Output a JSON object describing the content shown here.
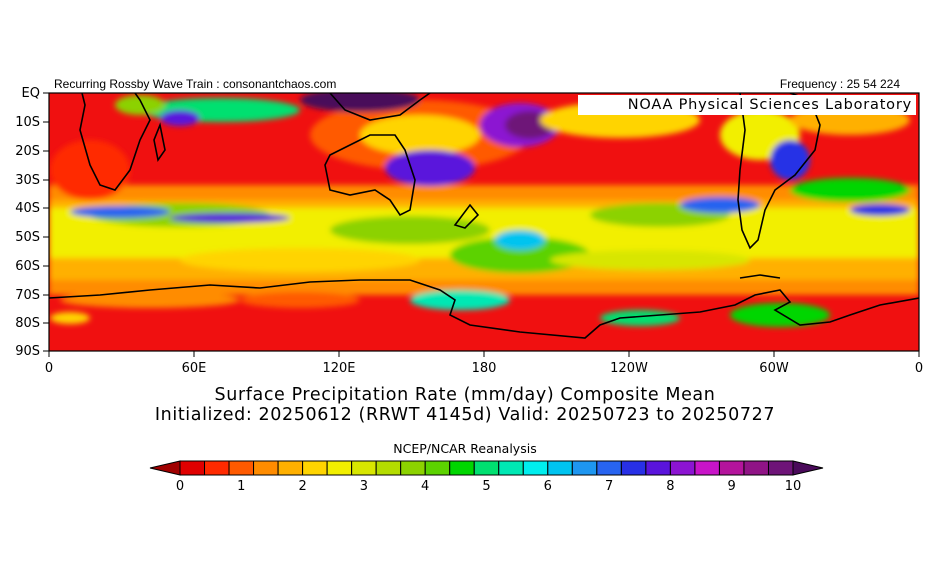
{
  "header": {
    "left_text": "Recurring Rossby Wave Train : consonantchaos.com",
    "right_text": "Frequency : 25 54 224"
  },
  "overlay": {
    "credit": "NOAA Physical Sciences Laboratory"
  },
  "map": {
    "variable": "Surface Precipitation Rate",
    "units": "mm/day",
    "region": "Southern Hemisphere, Equator to 90S, 0 to 360 longitude",
    "y_axis_labels": [
      "EQ",
      "10S",
      "20S",
      "30S",
      "40S",
      "50S",
      "60S",
      "70S",
      "80S",
      "90S"
    ],
    "x_axis_labels": [
      "0",
      "60E",
      "120E",
      "180",
      "120W",
      "60W",
      "0"
    ]
  },
  "title": {
    "line1": "Surface Precipitation Rate (mm/day) Composite Mean",
    "line2": "Initialized: 20250612 (RRWT 4145d) Valid: 20250723 to 20250727"
  },
  "source": "NCEP/NCAR Reanalysis",
  "colorbar": {
    "labels": [
      "0",
      "1",
      "2",
      "3",
      "4",
      "5",
      "6",
      "7",
      "8",
      "9",
      "10"
    ],
    "colors": [
      "#a00000",
      "#e00000",
      "#ff2a00",
      "#ff5a00",
      "#ff8c00",
      "#ffb000",
      "#ffd400",
      "#f2ef00",
      "#d8e600",
      "#b4dc00",
      "#8cd200",
      "#5cd200",
      "#00d600",
      "#00e070",
      "#00e8b4",
      "#00eeee",
      "#00c4f0",
      "#1e96f0",
      "#2864f0",
      "#2830e6",
      "#5a14dc",
      "#8c14d2",
      "#c814c8",
      "#b4149c",
      "#901486",
      "#6e1478",
      "#4a0a5a"
    ]
  }
}
